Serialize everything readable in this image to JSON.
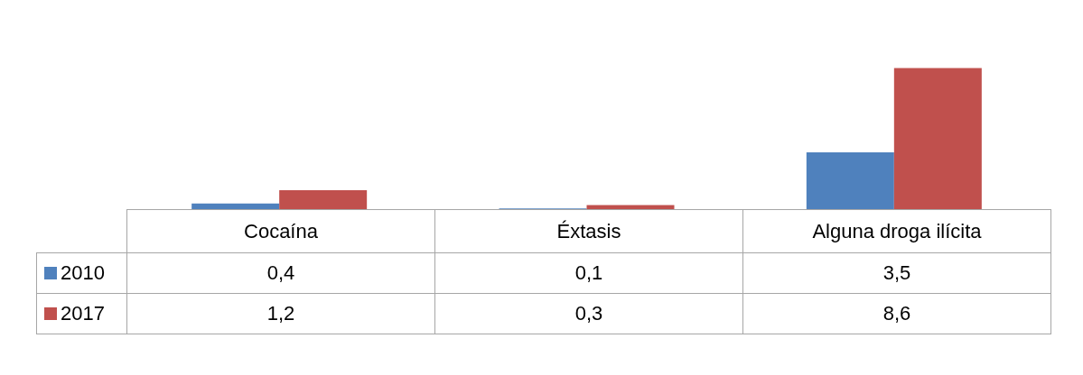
{
  "chart_data": {
    "type": "bar",
    "categories": [
      "Cocaína",
      "Éxtasis",
      "Alguna droga ilícita"
    ],
    "series": [
      {
        "name": "2010",
        "color": "#4f81bd",
        "values": [
          0.4,
          0.1,
          3.5
        ],
        "value_labels": [
          "0,4",
          "0,1",
          "3,5"
        ]
      },
      {
        "name": "2017",
        "color": "#c0504d",
        "values": [
          1.2,
          0.3,
          8.6
        ],
        "value_labels": [
          "1,2",
          "0,3",
          "8,6"
        ]
      }
    ],
    "legend": "bottom left"
  }
}
